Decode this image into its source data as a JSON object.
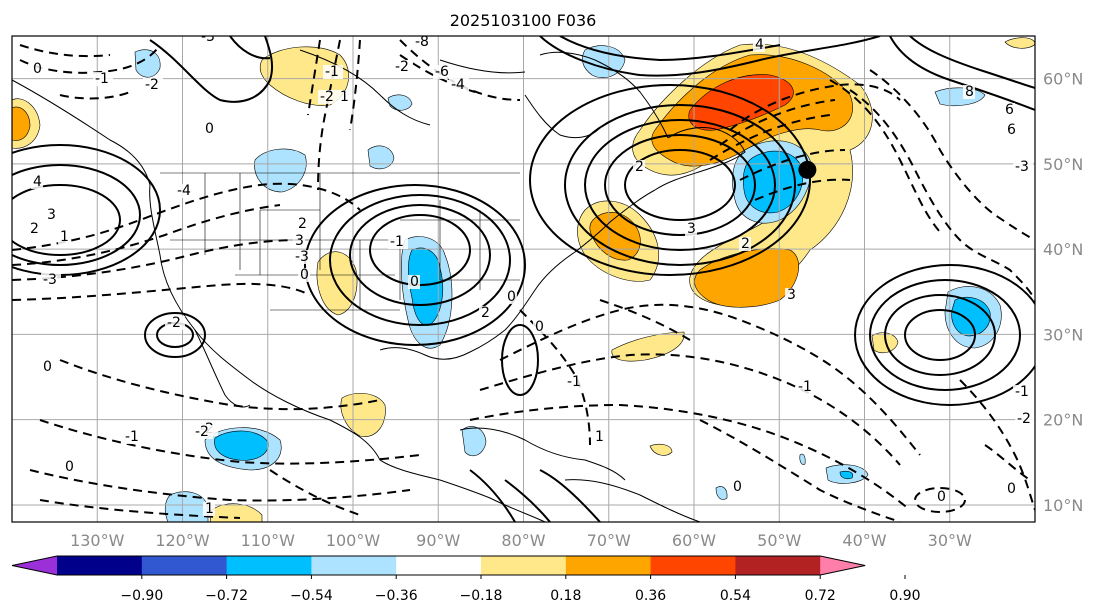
{
  "title": "2025103100 F036",
  "axes": {
    "lon_ticks": [
      "130°W",
      "120°W",
      "110°W",
      "100°W",
      "90°W",
      "80°W",
      "70°W",
      "60°W",
      "50°W",
      "40°W",
      "30°W"
    ],
    "lat_ticks": [
      "60°N",
      "50°N",
      "40°N",
      "30°N",
      "20°N",
      "10°N"
    ],
    "lon_range": [
      -140,
      -20
    ],
    "lat_range": [
      8,
      65
    ]
  },
  "marker": {
    "name": "storm-center",
    "lon": -46.7,
    "lat": 49.3,
    "color": "#000000"
  },
  "colorbar": {
    "labels": [
      "−0.90",
      "−0.72",
      "−0.54",
      "−0.36",
      "−0.18",
      "0.18",
      "0.36",
      "0.54",
      "0.72",
      "0.90"
    ],
    "levels": [
      -0.9,
      -0.72,
      -0.54,
      -0.36,
      -0.18,
      0.18,
      0.36,
      0.54,
      0.72,
      0.9
    ],
    "colors": [
      "#9b30d9",
      "#00008b",
      "#3158d1",
      "#00bfff",
      "#aee3ff",
      "#ffffff",
      "#ffe88a",
      "#ffa500",
      "#ff4500",
      "#b22222",
      "#ff7faa"
    ],
    "extend": "both"
  },
  "contour_labels": [
    "0",
    "-1",
    "-2",
    "-3",
    "4",
    "3",
    "2",
    "1",
    "-4",
    "0",
    "-1",
    "-2",
    "1",
    "2",
    "3",
    "-3",
    "0",
    "0",
    "-1",
    "-2",
    "-1",
    "-2",
    "-3",
    "0",
    "1",
    "-8",
    "-6",
    "-4",
    "-2",
    "0",
    "8",
    "6",
    "-3",
    "2",
    "3",
    "-1",
    "0",
    "0",
    "-1",
    "-2",
    "0",
    "0",
    "2",
    "-1",
    "1",
    "2",
    "3",
    "4",
    "0",
    "-2",
    "6"
  ]
}
